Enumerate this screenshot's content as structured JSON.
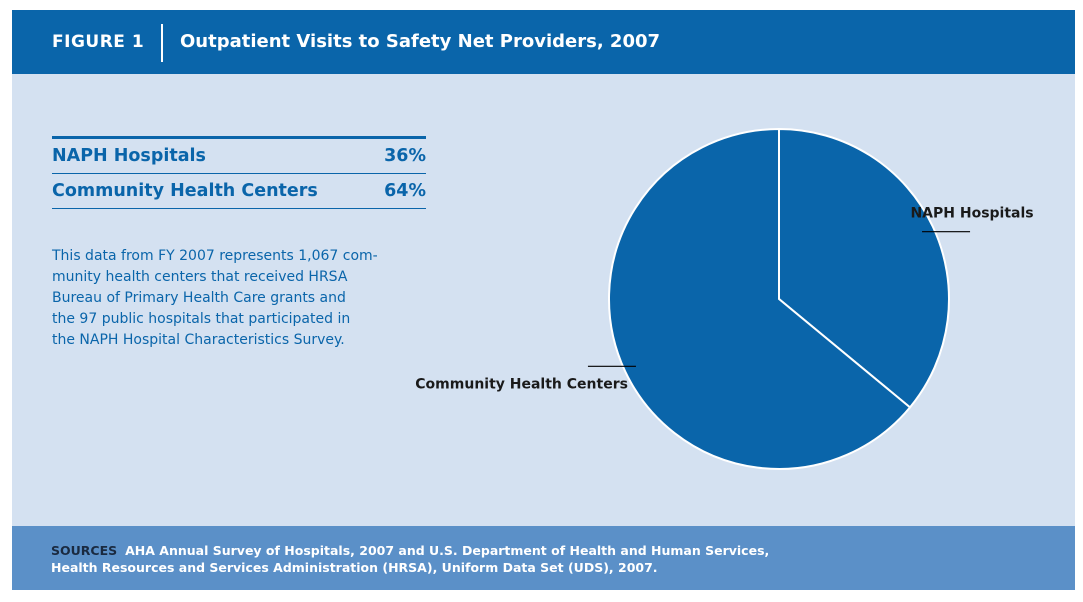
{
  "header": {
    "figure_label": "FIGURE 1",
    "title": "Outpatient Visits to Safety Net Providers, 2007"
  },
  "table": {
    "rows": [
      {
        "label": "NAPH Hospitals",
        "value": "36%"
      },
      {
        "label": "Community Health Centers",
        "value": "64%"
      }
    ]
  },
  "description": {
    "lines": [
      "This data from FY 2007 represents 1,067 com-",
      "munity health centers that received HRSA",
      "Bureau of Primary Health Care grants and",
      "the 97 public hospitals that participated in",
      "the NAPH Hospital Characteristics Survey."
    ]
  },
  "sources": {
    "keyword": "SOURCES",
    "line1": "AHA Annual Survey of Hospitals, 2007 and U.S. Department of Health and Human Services,",
    "line2": "Health Resources and Services Administration (HRSA), Uniform Data Set (UDS), 2007."
  },
  "colors": {
    "header_bg": "#0a65aa",
    "panel_bg": "#d4e1f1",
    "slice": "#0a65aa",
    "footer_bg": "#5b90c8"
  },
  "chart_data": {
    "type": "pie",
    "title": "",
    "slices": [
      {
        "label": "NAPH Hospitals",
        "value": 36
      },
      {
        "label": "Community Health Centers",
        "value": 64
      }
    ],
    "start_angle_deg": 0,
    "direction": "clockwise",
    "legend": "none"
  }
}
